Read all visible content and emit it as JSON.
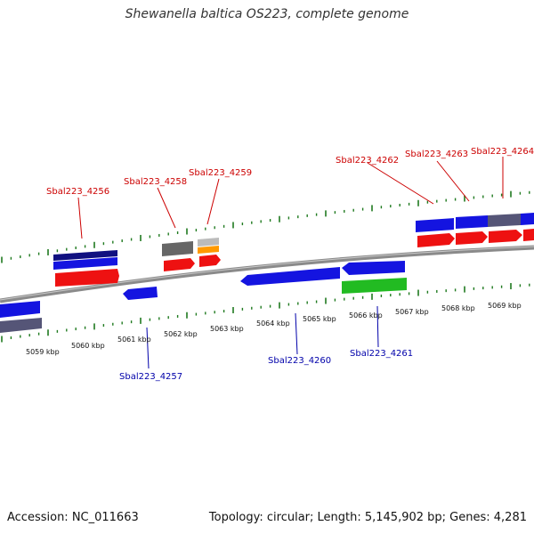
{
  "title": "Shewanella baltica OS223, complete genome",
  "footer": {
    "accession": "Accession: NC_011663",
    "summary": "Topology: circular; Length: 5,145,902 bp; Genes: 4,281"
  },
  "colors": {
    "backbone": "#8a8a8a",
    "tick": "#1f7a1f",
    "label_top": "#cc0000",
    "label_bottom": "#0000aa",
    "gene_blue": "#1414e0",
    "gene_red": "#ee1111",
    "gene_navy": "#101080",
    "gene_gray": "#666666",
    "gene_orange": "#ff9900",
    "gene_green": "#22bb22",
    "gene_slate": "#555577"
  },
  "kbp_labels": [
    "5059 kbp",
    "5060 kbp",
    "5061 kbp",
    "5062 kbp",
    "5063 kbp",
    "5064 kbp",
    "5065 kbp",
    "5066 kbp",
    "5067 kbp",
    "5068 kbp",
    "5069 kbp"
  ],
  "gene_labels_top": [
    "Sbal223_4256",
    "Sbal223_4258",
    "Sbal223_4259",
    "Sbal223_4262",
    "Sbal223_4263",
    "Sbal223_4264"
  ],
  "gene_labels_bottom": [
    "Sbal223_4257",
    "Sbal223_4260",
    "Sbal223_4261"
  ]
}
